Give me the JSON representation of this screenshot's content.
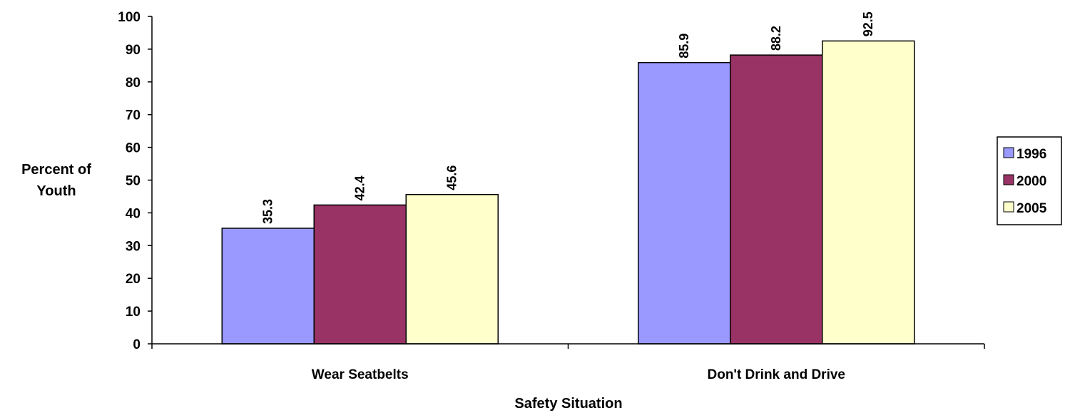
{
  "chart_data": {
    "type": "bar",
    "title": "",
    "xlabel": "Safety Situation",
    "ylabel": [
      "Percent of",
      "Youth"
    ],
    "ylim": [
      0,
      100
    ],
    "yticks": [
      0,
      10,
      20,
      30,
      40,
      50,
      60,
      70,
      80,
      90,
      100
    ],
    "categories": [
      "Wear Seatbelts",
      "Don't Drink and Drive"
    ],
    "series": [
      {
        "name": "1996",
        "color": "#9999ff",
        "values": [
          35.3,
          85.9
        ],
        "labels": [
          "35.3",
          "85.9"
        ]
      },
      {
        "name": "2000",
        "color": "#993366",
        "values": [
          42.4,
          88.2
        ],
        "labels": [
          "42.4",
          "88.2"
        ]
      },
      {
        "name": "2005",
        "color": "#ffffcc",
        "values": [
          45.6,
          92.5
        ],
        "labels": [
          "45.6",
          "92.5"
        ]
      }
    ],
    "grid": false,
    "legend_position": "right"
  }
}
